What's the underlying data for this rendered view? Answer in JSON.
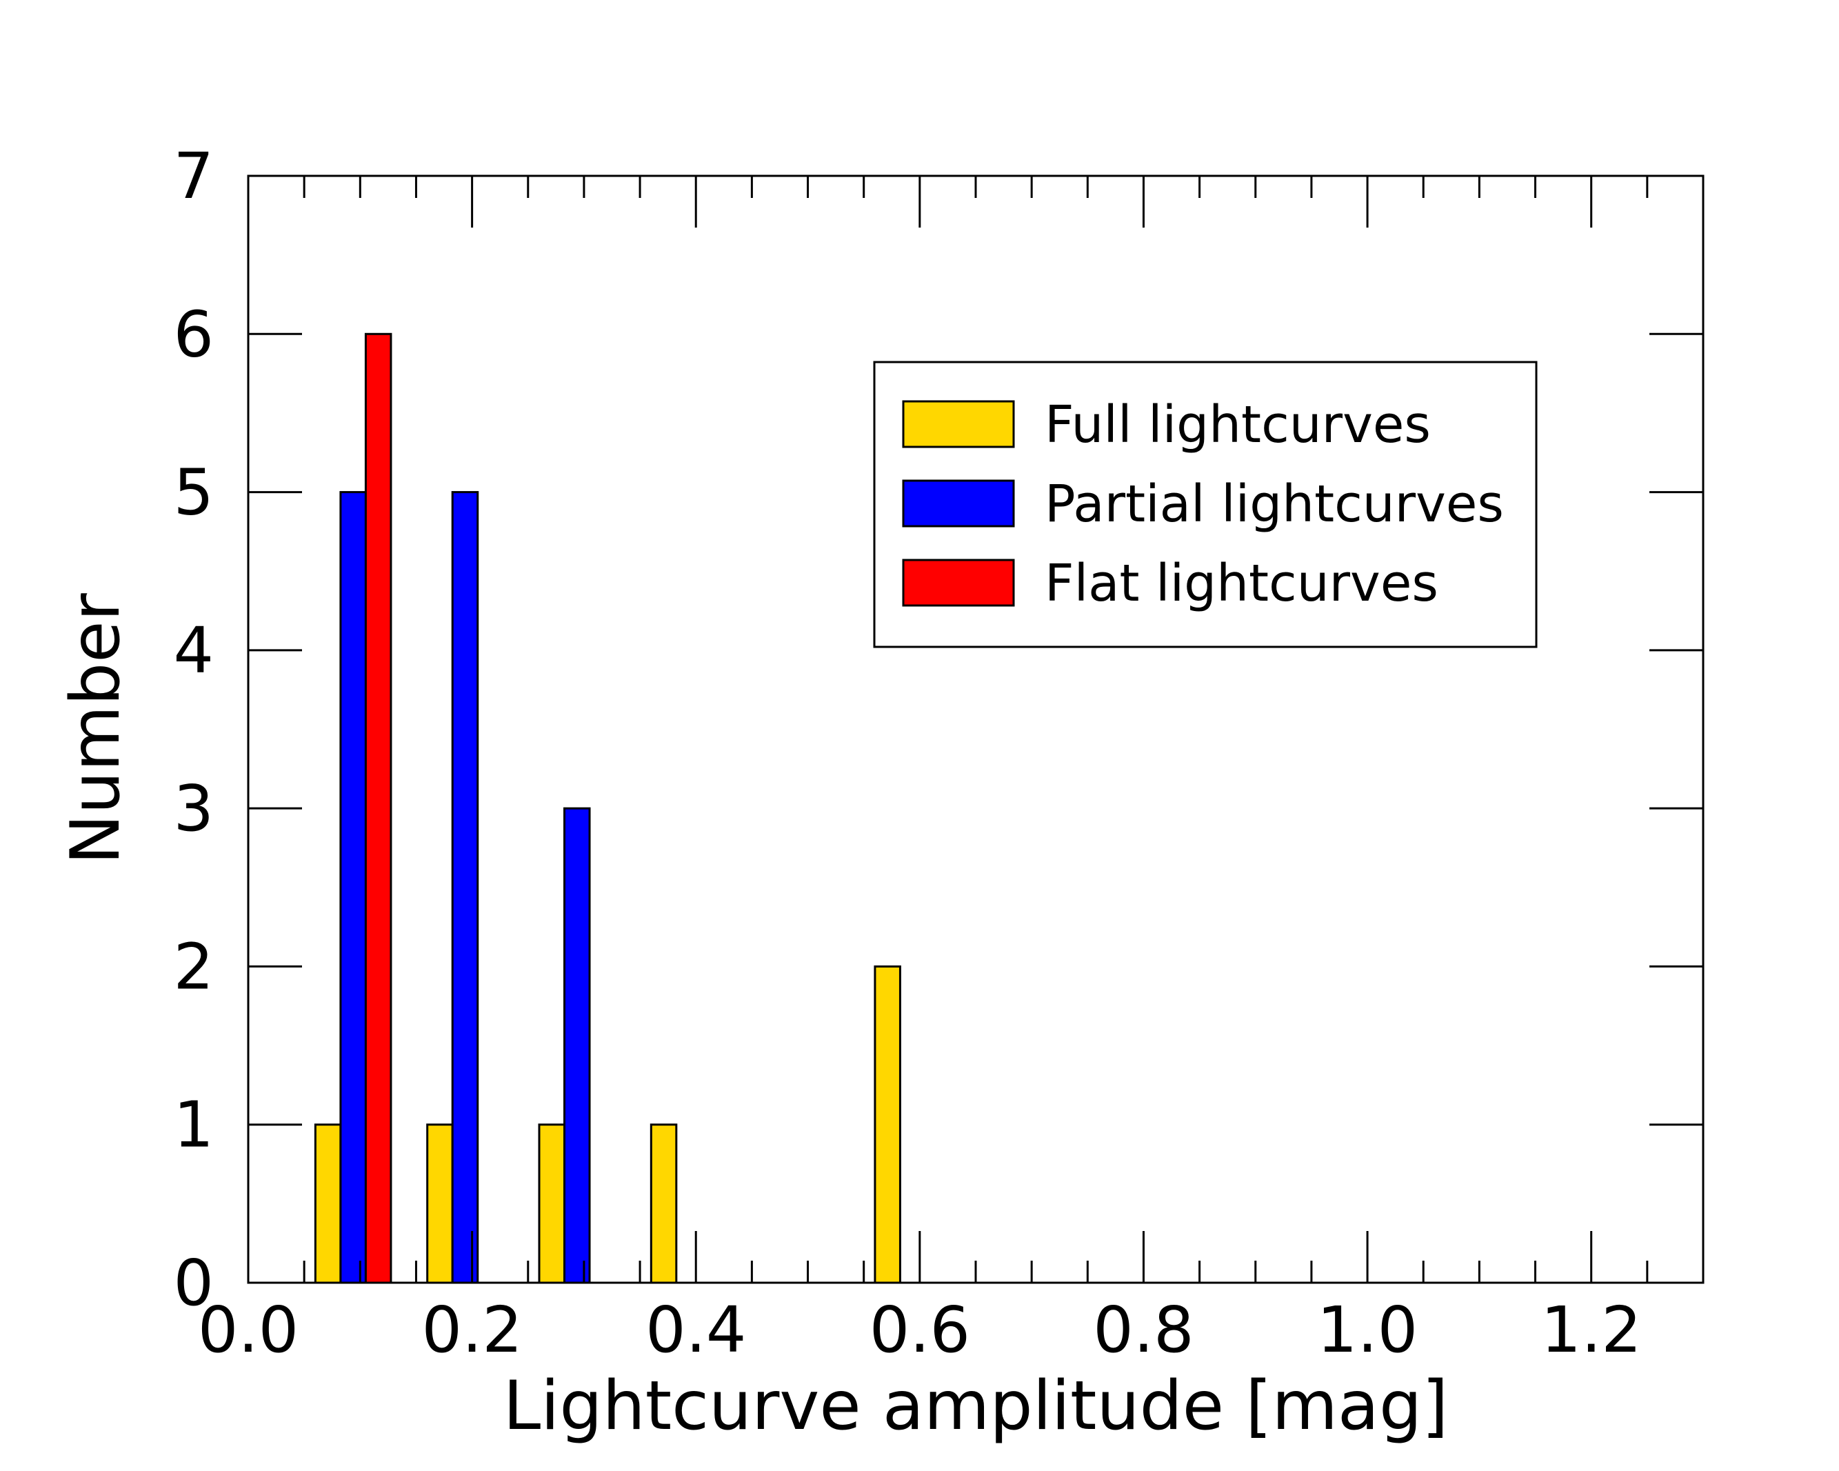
{
  "chart_data": {
    "type": "bar",
    "xlabel": "Lightcurve amplitude [mag]",
    "ylabel": "Number",
    "xlim": [
      0.0,
      1.3
    ],
    "ylim": [
      0,
      7
    ],
    "bin_width": 0.1,
    "x_major_ticks": [
      "0.0",
      "0.2",
      "0.4",
      "0.6",
      "0.8",
      "1.0",
      "1.2"
    ],
    "y_major_ticks": [
      "0",
      "1",
      "2",
      "3",
      "4",
      "5",
      "6",
      "7"
    ],
    "series": [
      {
        "name": "Full lightcurves",
        "color": "#FFD700",
        "bins": [
          0.1,
          0.2,
          0.3,
          0.4,
          0.6
        ],
        "values": [
          1,
          1,
          1,
          1,
          2
        ]
      },
      {
        "name": "Partial lightcurves",
        "color": "#0000FF",
        "bins": [
          0.1,
          0.2,
          0.3
        ],
        "values": [
          5,
          5,
          3
        ]
      },
      {
        "name": "Flat lightcurves",
        "color": "#FF0000",
        "bins": [
          0.1
        ],
        "values": [
          6
        ]
      }
    ],
    "legend": {
      "placement": "upper-right"
    }
  }
}
